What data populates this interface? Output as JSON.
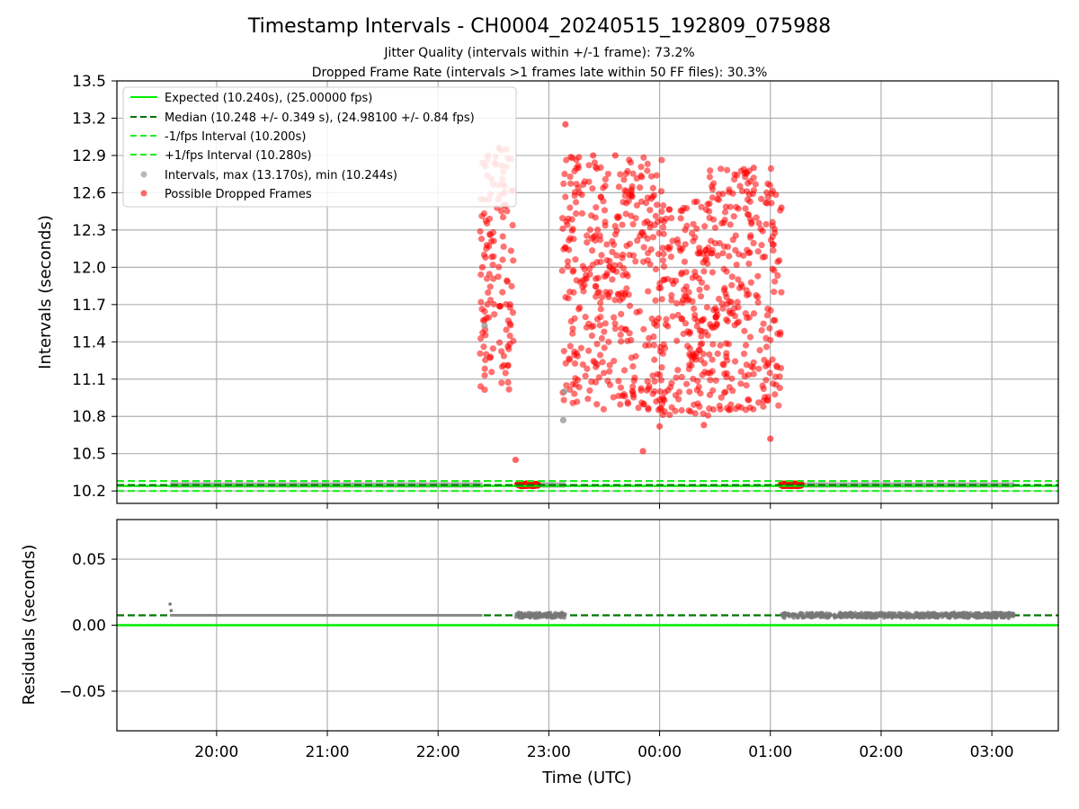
{
  "colors": {
    "expected": "#00ee00",
    "median": "#007700",
    "fps_bounds": "#22ee22",
    "intervals": "#999999",
    "dropped": "#ff0000",
    "grid": "#b0b0b0"
  },
  "chart_data": [
    {
      "type": "scatter",
      "title": "Timestamp Intervals - CH0004_20240515_192809_075988",
      "subtitle_1": "Jitter Quality (intervals within +/-1 frame): 73.2%",
      "subtitle_2": "Dropped Frame Rate (intervals >1 frames late within 50 FF files): 30.3%",
      "ylabel": "Intervals (seconds)",
      "xlabel": "",
      "x_axis": "time (UTC), hours since 19:00 on the first day",
      "xlim": [
        0.0,
        8.5
      ],
      "ylim": [
        10.1,
        13.5
      ],
      "y_ticks": [
        10.2,
        10.5,
        10.8,
        11.1,
        11.4,
        11.7,
        12.0,
        12.3,
        12.6,
        12.9,
        13.2,
        13.5
      ],
      "y_tick_labels": [
        "10.2",
        "10.5",
        "10.8",
        "11.1",
        "11.4",
        "11.7",
        "12.0",
        "12.3",
        "12.6",
        "12.9",
        "13.2",
        "13.5"
      ],
      "grid": true,
      "legend_position": "top-left",
      "legend": [
        {
          "label": "Expected (10.240s), (25.00000 fps)",
          "style": "solid",
          "color": "#00ee00"
        },
        {
          "label": "Median (10.248 +/- 0.349 s), (24.98100 +/- 0.84 fps)",
          "style": "dashed",
          "color": "#007700"
        },
        {
          "label": "-1/fps Interval (10.200s)",
          "style": "dashed",
          "color": "#22ee22"
        },
        {
          "label": "+1/fps Interval (10.280s)",
          "style": "dashed",
          "color": "#22ee22"
        },
        {
          "label": "Intervals, max (13.170s), min (10.244s)",
          "style": "marker",
          "color": "#999999"
        },
        {
          "label": "Possible Dropped Frames",
          "style": "marker",
          "color": "#ff0000"
        }
      ],
      "reference_lines": {
        "expected": 10.24,
        "median": 10.248,
        "minus_fps": 10.2,
        "plus_fps": 10.28
      },
      "baseline_segments": [
        {
          "x_start": 0.48,
          "x_end": 3.3,
          "y": 10.248
        },
        {
          "x_start": 3.6,
          "x_end": 4.05,
          "y": 10.248
        },
        {
          "x_start": 6.0,
          "x_end": 8.1,
          "y": 10.248
        }
      ],
      "dropped_baseline_clusters": [
        {
          "x_start": 3.62,
          "x_end": 3.8,
          "y": 10.25
        },
        {
          "x_start": 6.0,
          "x_end": 6.18,
          "y": 10.25
        }
      ],
      "dropped_points_sample": [
        {
          "x": 3.3,
          "y": 12.0
        },
        {
          "x": 3.35,
          "y": 12.9
        },
        {
          "x": 3.45,
          "y": 12.96
        },
        {
          "x": 3.5,
          "y": 12.6
        },
        {
          "x": 3.55,
          "y": 11.7
        },
        {
          "x": 3.6,
          "y": 10.45
        },
        {
          "x": 4.05,
          "y": 13.15
        },
        {
          "x": 4.3,
          "y": 12.9
        },
        {
          "x": 4.5,
          "y": 12.9
        },
        {
          "x": 4.75,
          "y": 10.52
        },
        {
          "x": 4.9,
          "y": 10.72
        },
        {
          "x": 5.3,
          "y": 10.73
        },
        {
          "x": 5.75,
          "y": 12.8
        },
        {
          "x": 5.9,
          "y": 10.62
        },
        {
          "x": 6.0,
          "y": 12.48
        }
      ],
      "dropped_point_bands": [
        {
          "x_start": 3.28,
          "x_end": 3.58,
          "y_min": 11.0,
          "y_max": 12.95
        },
        {
          "x_start": 4.02,
          "x_end": 4.92,
          "y_min": 10.85,
          "y_max": 12.9
        },
        {
          "x_start": 4.92,
          "x_end": 5.35,
          "y_min": 10.8,
          "y_max": 12.55
        },
        {
          "x_start": 5.35,
          "x_end": 6.0,
          "y_min": 10.85,
          "y_max": 12.8
        }
      ],
      "grey_interval_points": [
        {
          "x": 3.32,
          "y": 11.53
        },
        {
          "x": 4.03,
          "y": 10.77
        },
        {
          "x": 4.04,
          "y": 11.0
        }
      ]
    },
    {
      "type": "scatter",
      "ylabel": "Residuals (seconds)",
      "xlabel": "Time (UTC)",
      "xlim": [
        0.0,
        8.5
      ],
      "ylim": [
        -0.08,
        0.08
      ],
      "y_ticks": [
        -0.05,
        0.0,
        0.05
      ],
      "y_tick_labels": [
        "−0.05",
        "0.00",
        "0.05"
      ],
      "x_ticks": [
        0.9,
        1.9,
        2.9,
        3.9,
        4.9,
        5.9,
        6.9,
        7.9
      ],
      "x_tick_labels": [
        "20:00",
        "21:00",
        "22:00",
        "23:00",
        "00:00",
        "01:00",
        "02:00",
        "03:00"
      ],
      "grid": true,
      "reference_lines": {
        "zero": 0.0,
        "median_residual": 0.0075
      },
      "residual_segments": [
        {
          "x_start": 0.48,
          "x_end": 3.3,
          "y": 0.0075
        },
        {
          "x_start": 3.6,
          "x_end": 4.05,
          "y": 0.0075,
          "spread": 0.004
        },
        {
          "x_start": 6.0,
          "x_end": 8.1,
          "y": 0.0075,
          "spread": 0.004
        }
      ],
      "residual_outliers": [
        {
          "x": 0.48,
          "y": 0.016
        },
        {
          "x": 0.49,
          "y": 0.011
        }
      ]
    }
  ]
}
